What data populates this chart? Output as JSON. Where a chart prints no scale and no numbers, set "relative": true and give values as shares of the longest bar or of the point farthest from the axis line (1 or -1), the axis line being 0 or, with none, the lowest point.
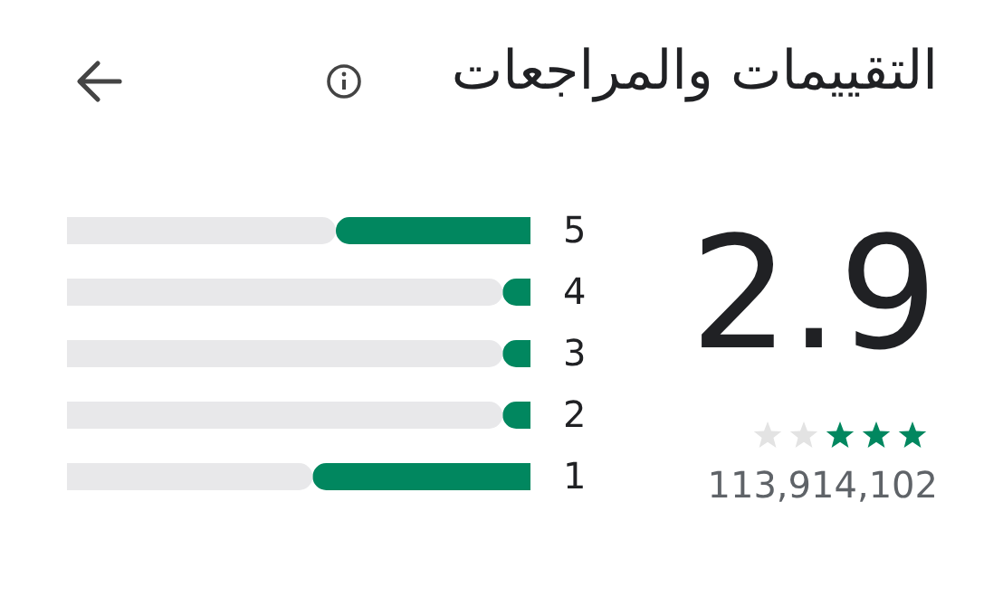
{
  "chart_data": {
    "type": "bar",
    "orientation": "horizontal",
    "relative": true,
    "stacked": true,
    "title": "التقييمات والمراجعات",
    "categories": [
      "5",
      "4",
      "3",
      "2",
      "1"
    ],
    "series": [
      {
        "color": "#01875f",
        "values": [
          0.42,
          0.06,
          0.06,
          0.06,
          0.47
        ]
      },
      {
        "color": "#e8e8ea",
        "values": [
          0.58,
          0.94,
          0.94,
          0.94,
          0.53
        ]
      }
    ],
    "annotations": [
      "2.9",
      "113,914,102"
    ]
  }
}
